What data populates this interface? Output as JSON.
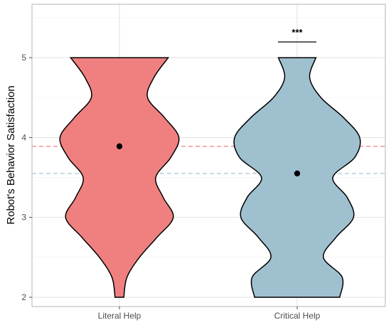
{
  "chart_data": {
    "type": "violin",
    "ylabel": "Robot's Behavior Satisfaction",
    "xlabel": "",
    "categories": [
      "Literal Help",
      "Critical Help"
    ],
    "ylim": [
      1.75,
      5.65
    ],
    "yticks": [
      2,
      3,
      4,
      5
    ],
    "grid": true,
    "legend": "none",
    "series": [
      {
        "category": "Literal Help",
        "color": "#f08080",
        "mean": 3.89,
        "density_profile": [
          [
            2.0,
            0.07
          ],
          [
            2.25,
            0.12
          ],
          [
            2.5,
            0.32
          ],
          [
            2.75,
            0.6
          ],
          [
            3.0,
            0.86
          ],
          [
            3.25,
            0.7
          ],
          [
            3.5,
            0.58
          ],
          [
            3.75,
            0.82
          ],
          [
            4.0,
            0.95
          ],
          [
            4.25,
            0.72
          ],
          [
            4.5,
            0.45
          ],
          [
            4.75,
            0.55
          ],
          [
            5.0,
            0.78
          ]
        ]
      },
      {
        "category": "Critical Help",
        "color": "#9fc0cf",
        "mean": 3.55,
        "density_profile": [
          [
            2.0,
            0.68
          ],
          [
            2.25,
            0.72
          ],
          [
            2.5,
            0.42
          ],
          [
            2.75,
            0.62
          ],
          [
            3.0,
            0.9
          ],
          [
            3.25,
            0.8
          ],
          [
            3.5,
            0.57
          ],
          [
            3.75,
            0.92
          ],
          [
            4.0,
            1.0
          ],
          [
            4.25,
            0.74
          ],
          [
            4.5,
            0.38
          ],
          [
            4.75,
            0.2
          ],
          [
            5.0,
            0.3
          ]
        ]
      }
    ],
    "reference_lines": [
      {
        "y": 3.89,
        "color": "#f08080",
        "style": "dashed"
      },
      {
        "y": 3.55,
        "color": "#9fc0cf",
        "style": "dashed"
      }
    ],
    "annotations": [
      {
        "text": "***",
        "between": [
          "Critical Help"
        ]
      }
    ]
  }
}
